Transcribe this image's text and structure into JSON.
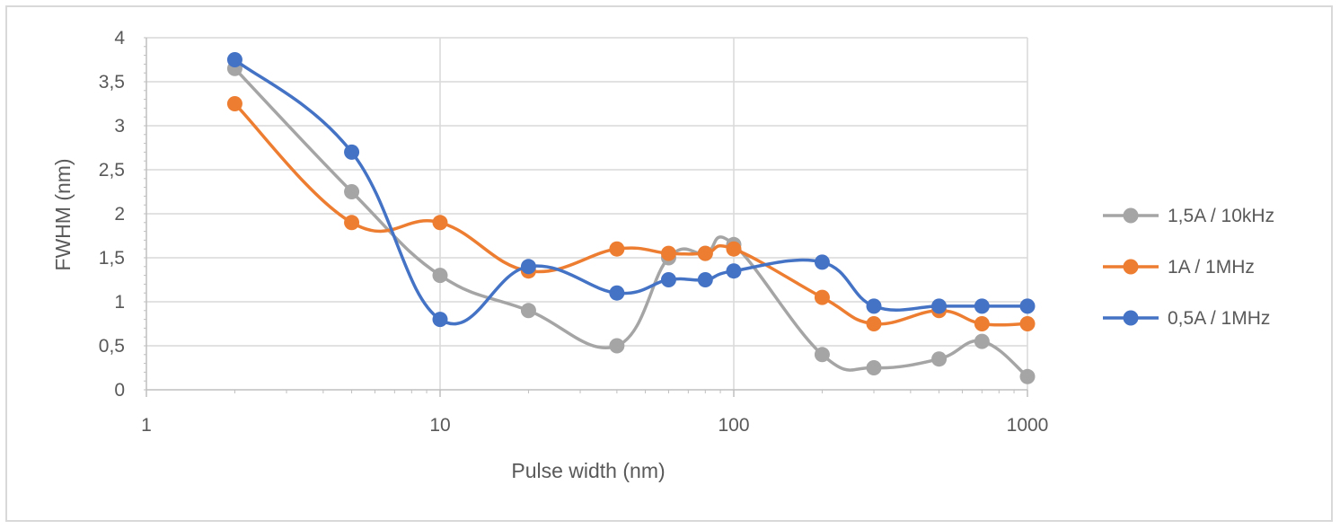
{
  "chart_data": {
    "type": "line",
    "title": "",
    "xlabel": "Pulse width (nm)",
    "ylabel": "FWHM (nm)",
    "x_scale": "log",
    "xlim": [
      1,
      1000
    ],
    "ylim": [
      0,
      4
    ],
    "x_ticks": [
      1,
      10,
      100,
      1000
    ],
    "x_tick_labels": [
      "1",
      "10",
      "100",
      "1000"
    ],
    "y_ticks": [
      0,
      0.5,
      1,
      1.5,
      2,
      2.5,
      3,
      3.5,
      4
    ],
    "y_tick_labels": [
      "0",
      "0,5",
      "1",
      "1,5",
      "2",
      "2,5",
      "3",
      "3,5",
      "4"
    ],
    "grid": true,
    "legend_position": "right",
    "series": [
      {
        "name": "1,5A / 10kHz",
        "color": "#a5a5a5",
        "x": [
          2,
          5,
          10,
          20,
          40,
          60,
          80,
          100,
          200,
          300,
          500,
          700,
          1000
        ],
        "y": [
          3.65,
          2.25,
          1.3,
          0.9,
          0.5,
          1.5,
          1.55,
          1.65,
          0.4,
          0.25,
          0.35,
          0.55,
          0.15
        ]
      },
      {
        "name": "1A / 1MHz",
        "color": "#ed7d31",
        "x": [
          2,
          5,
          10,
          20,
          40,
          60,
          80,
          100,
          200,
          300,
          500,
          700,
          1000
        ],
        "y": [
          3.25,
          1.9,
          1.9,
          1.35,
          1.6,
          1.55,
          1.55,
          1.6,
          1.05,
          0.75,
          0.9,
          0.75,
          0.75
        ]
      },
      {
        "name": "0,5A / 1MHz",
        "color": "#4472c4",
        "x": [
          2,
          5,
          10,
          20,
          40,
          60,
          80,
          100,
          200,
          300,
          500,
          700,
          1000
        ],
        "y": [
          3.75,
          2.7,
          0.8,
          1.4,
          1.1,
          1.25,
          1.25,
          1.35,
          1.45,
          0.95,
          0.95,
          0.95,
          0.95
        ]
      }
    ]
  }
}
